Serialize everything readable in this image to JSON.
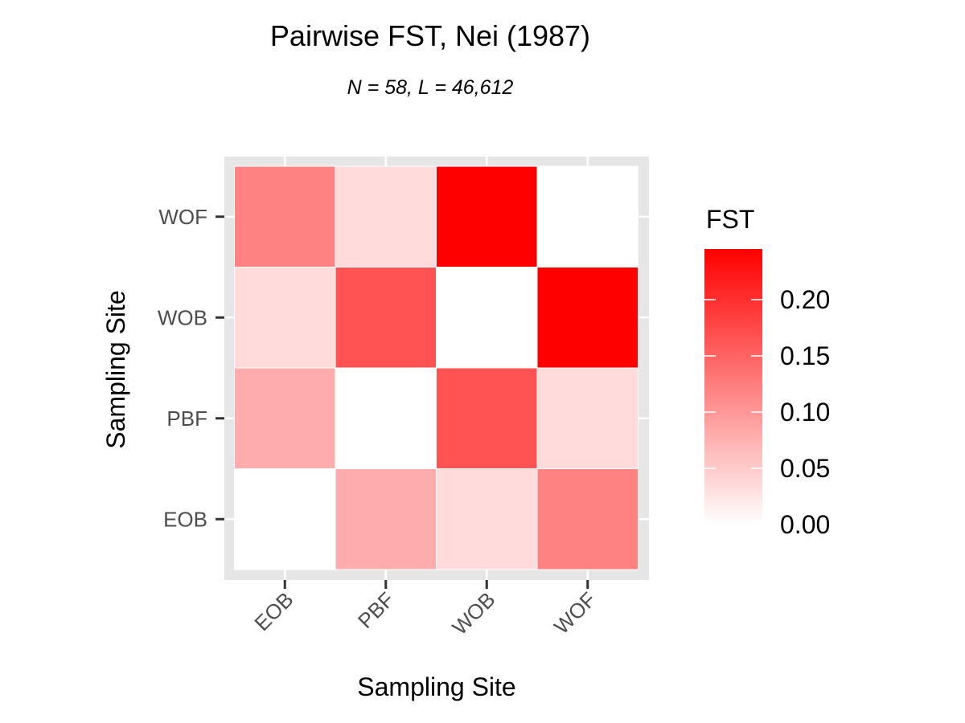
{
  "chart_data": {
    "type": "heatmap",
    "title": "Pairwise FST, Nei (1987)",
    "subtitle": "N = 58, L = 46,612",
    "xlabel": "Sampling Site",
    "ylabel": "Sampling Site",
    "x_categories": [
      "EOB",
      "PBF",
      "WOB",
      "WOF"
    ],
    "y_categories": [
      "EOB",
      "PBF",
      "WOB",
      "WOF"
    ],
    "cells": [
      {
        "x": "EOB",
        "y": "EOB",
        "value": 0.0
      },
      {
        "x": "PBF",
        "y": "EOB",
        "value": 0.08
      },
      {
        "x": "WOB",
        "y": "EOB",
        "value": 0.035
      },
      {
        "x": "WOF",
        "y": "EOB",
        "value": 0.12
      },
      {
        "x": "EOB",
        "y": "PBF",
        "value": 0.08
      },
      {
        "x": "PBF",
        "y": "PBF",
        "value": 0.0
      },
      {
        "x": "WOB",
        "y": "PBF",
        "value": 0.165
      },
      {
        "x": "WOF",
        "y": "PBF",
        "value": 0.035
      },
      {
        "x": "EOB",
        "y": "WOB",
        "value": 0.035
      },
      {
        "x": "PBF",
        "y": "WOB",
        "value": 0.165
      },
      {
        "x": "WOB",
        "y": "WOB",
        "value": 0.0
      },
      {
        "x": "WOF",
        "y": "WOB",
        "value": 0.245
      },
      {
        "x": "EOB",
        "y": "WOF",
        "value": 0.12
      },
      {
        "x": "PBF",
        "y": "WOF",
        "value": 0.035
      },
      {
        "x": "WOB",
        "y": "WOF",
        "value": 0.245
      },
      {
        "x": "WOF",
        "y": "WOF",
        "value": 0.0
      }
    ],
    "legend": {
      "title": "FST",
      "range": [
        0,
        0.245
      ],
      "breaks": [
        0.0,
        0.05,
        0.1,
        0.15,
        0.2
      ],
      "labels": [
        "0.00",
        "0.05",
        "0.10",
        "0.15",
        "0.20"
      ],
      "low_color": "#ffffff",
      "high_color": "#ff0000",
      "position": "right"
    },
    "colors": {
      "panel_background": "#e6e6e6",
      "grid": "#ffffff",
      "tick": "#333333",
      "tick_label": "#4d4d4d"
    }
  }
}
